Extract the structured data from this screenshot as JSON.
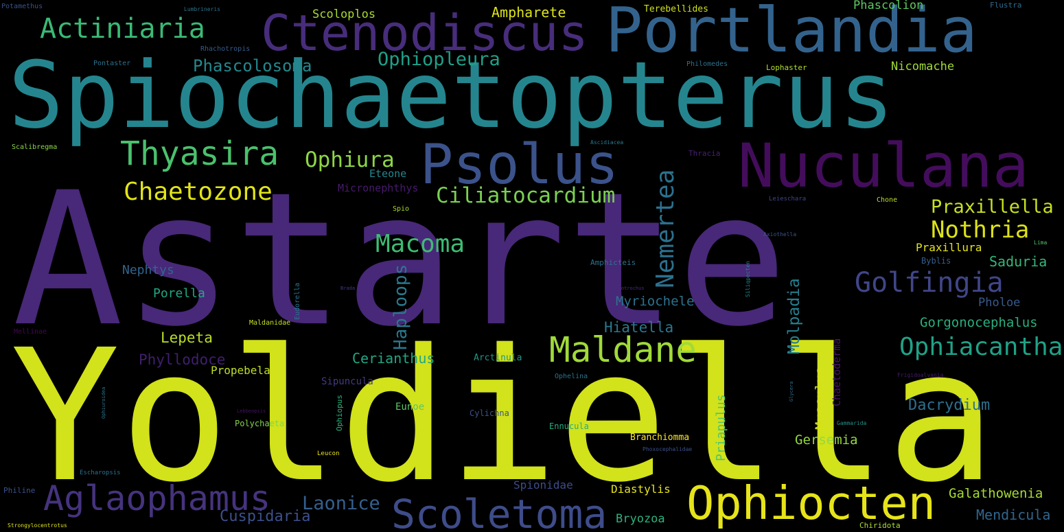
{
  "words": [
    {
      "text": "Astarte",
      "color": "#482878"
    },
    {
      "text": "Yoldiella",
      "color": "#d2e21b"
    },
    {
      "text": "Spiochaetopterus",
      "color": "#25858e"
    },
    {
      "text": "Portlandia",
      "color": "#33638d"
    },
    {
      "text": "Nuculana",
      "color": "#440d5c"
    },
    {
      "text": "Ctenodiscus",
      "color": "#472d7b"
    },
    {
      "text": "Psolus",
      "color": "#3b528b"
    },
    {
      "text": "Ophiocten",
      "color": "#e6e419"
    },
    {
      "text": "Scoletoma",
      "color": "#3e4c8a"
    },
    {
      "text": "Aglaophamus",
      "color": "#46337e"
    },
    {
      "text": "Maldane",
      "color": "#a0da39"
    },
    {
      "text": "Actiniaria",
      "color": "#3aba76"
    },
    {
      "text": "Thyasira",
      "color": "#4ac16d"
    },
    {
      "text": "Golfingia",
      "color": "#404688"
    },
    {
      "text": "Ophiacantha",
      "color": "#1fa287"
    },
    {
      "text": "Chaetozone",
      "color": "#e2e418"
    },
    {
      "text": "Macoma",
      "color": "#3ebc73"
    },
    {
      "text": "Nemertea",
      "color": "#2c718e"
    },
    {
      "text": "Nothria",
      "color": "#dde318"
    },
    {
      "text": "Ciliatocardium",
      "color": "#7ad151"
    },
    {
      "text": "Ophiura",
      "color": "#8ed645"
    },
    {
      "text": "Praxillella",
      "color": "#c8e020"
    },
    {
      "text": "Ophiopleura",
      "color": "#1fa088"
    },
    {
      "text": "Phascolosoma",
      "color": "#23888e"
    },
    {
      "text": "Haploops",
      "color": "#2a788e"
    },
    {
      "text": "Laonice",
      "color": "#355f8d"
    },
    {
      "text": "Cuspidaria",
      "color": "#3c508b"
    },
    {
      "text": "Molpadia",
      "color": "#277f8e"
    },
    {
      "text": "Dacrydium",
      "color": "#2e6f8e"
    },
    {
      "text": "Gorgonocephalus",
      "color": "#29af7f"
    },
    {
      "text": "Myriochele",
      "color": "#2c728e"
    },
    {
      "text": "Cerianthus",
      "color": "#22a785"
    },
    {
      "text": "Hiatella",
      "color": "#2a788e"
    },
    {
      "text": "Phyllodoce",
      "color": "#3f1f6e"
    },
    {
      "text": "Lepeta",
      "color": "#bade28"
    },
    {
      "text": "Saduria",
      "color": "#35b779"
    },
    {
      "text": "Mendicula",
      "color": "#31668e"
    },
    {
      "text": "Galathowenia",
      "color": "#a5db36"
    },
    {
      "text": "Musculus",
      "color": "#d8e219"
    },
    {
      "text": "Priapulus",
      "color": "#52c569"
    },
    {
      "text": "Gersemia",
      "color": "#95d840"
    },
    {
      "text": "Nephtys",
      "color": "#31658e"
    },
    {
      "text": "Porella",
      "color": "#22a884"
    },
    {
      "text": "Pholoe",
      "color": "#375a8c"
    },
    {
      "text": "Propebela",
      "color": "#c2df23"
    },
    {
      "text": "Ampharete",
      "color": "#dde318"
    },
    {
      "text": "Scoloplos",
      "color": "#a8db34"
    },
    {
      "text": "Phascolion",
      "color": "#5ec962"
    },
    {
      "text": "Nicomache",
      "color": "#a2da37"
    },
    {
      "text": "Praxillura",
      "color": "#e5e419"
    },
    {
      "text": "Diastylis",
      "color": "#e7e419"
    },
    {
      "text": "Bryozoa",
      "color": "#2db27d"
    },
    {
      "text": "Branchiomma",
      "color": "#fde725"
    },
    {
      "text": "Eteone",
      "color": "#24878e"
    },
    {
      "text": "Chaetoderma",
      "color": "#481668"
    },
    {
      "text": "Byblis",
      "color": "#355e8d"
    },
    {
      "text": "Spionidae",
      "color": "#3d4d8a"
    },
    {
      "text": "Sipuncula",
      "color": "#443983"
    },
    {
      "text": "Eunoe",
      "color": "#5cc863"
    },
    {
      "text": "Cylichna",
      "color": "#3b528b"
    },
    {
      "text": "Ennucula",
      "color": "#26ad81"
    },
    {
      "text": "Ophiopus",
      "color": "#2db27d"
    },
    {
      "text": "Polychaeta",
      "color": "#84d44b"
    },
    {
      "text": "Arctinula",
      "color": "#1f978b"
    },
    {
      "text": "Terebellides",
      "color": "#d0e11c"
    },
    {
      "text": "Micronephthys",
      "color": "#481a6c"
    },
    {
      "text": "Flustra",
      "color": "#2f6c8e"
    },
    {
      "text": "Lophaster",
      "color": "#b2dd2d"
    },
    {
      "text": "Philomedes",
      "color": "#2c728e"
    },
    {
      "text": "Rhachotropis",
      "color": "#365c8d"
    },
    {
      "text": "Pontaster",
      "color": "#2c718e"
    },
    {
      "text": "Potamethus",
      "color": "#3a538b"
    },
    {
      "text": "Lumbrineris",
      "color": "#2b758e"
    },
    {
      "text": "Scalibregma",
      "color": "#8bd646"
    },
    {
      "text": "Ascidiacea",
      "color": "#29798e"
    },
    {
      "text": "Thracia",
      "color": "#482071"
    },
    {
      "text": "Spio",
      "color": "#addc30"
    },
    {
      "text": "Chone",
      "color": "#bade28"
    },
    {
      "text": "Leieschara",
      "color": "#404588"
    },
    {
      "text": "Axiothella",
      "color": "#3a548c"
    },
    {
      "text": "Lima",
      "color": "#50c46a"
    },
    {
      "text": "Amphicteis",
      "color": "#2c738e"
    },
    {
      "text": "Eudorella",
      "color": "#2b748e"
    },
    {
      "text": "Brada",
      "color": "#453882"
    },
    {
      "text": "Myriotrochus",
      "color": "#472c7a"
    },
    {
      "text": "Siliqpecten",
      "color": "#25838e"
    },
    {
      "text": "Maldanidae",
      "color": "#c5e021"
    },
    {
      "text": "Mellinae",
      "color": "#450559"
    },
    {
      "text": "Ophelina",
      "color": "#2a768e"
    },
    {
      "text": "Frigidoalvania",
      "color": "#481b6d"
    },
    {
      "text": "Glycera",
      "color": "#2e6d8e"
    },
    {
      "text": "Gammarida",
      "color": "#20928c"
    },
    {
      "text": "Ophiuroidea",
      "color": "#2a778e"
    },
    {
      "text": "Lebbeopsis",
      "color": "#481467"
    },
    {
      "text": "Phoxocephalidae",
      "color": "#3b518b"
    },
    {
      "text": "Leucon",
      "color": "#eae51a"
    },
    {
      "text": "Escharopsis",
      "color": "#2c718e"
    },
    {
      "text": "Philine",
      "color": "#3b528b"
    },
    {
      "text": "Strongylocentrotus",
      "color": "#dfe318"
    },
    {
      "text": "Chiridota",
      "color": "#b0dd2f"
    }
  ]
}
